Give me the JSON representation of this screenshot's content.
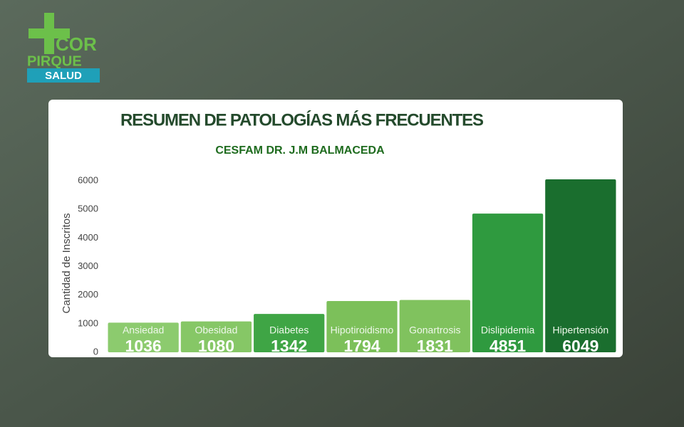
{
  "logo": {
    "line1": "COR",
    "line2": "PIRQUE",
    "line3": "SALUD"
  },
  "chart_data": {
    "type": "bar",
    "title": "RESUMEN DE PATOLOGÍAS MÁS FRECUENTES",
    "subtitle": "CESFAM DR. J.M BALMACEDA",
    "y_label": "Cantidad de Inscritos",
    "categories": [
      "Ansiedad",
      "Obesidad",
      "Diabetes",
      "Hipotiroidismo",
      "Gonartrosis",
      "Dislipidemia",
      "Hipertensión"
    ],
    "values": [
      1036,
      1080,
      1342,
      1794,
      1831,
      4851,
      6049
    ],
    "colors": [
      "#8ccb6e",
      "#86c766",
      "#3fa545",
      "#7cc05a",
      "#80c25e",
      "#2f9a3f",
      "#1a6e2e"
    ],
    "ylim": [
      0,
      6000
    ],
    "yticks": [
      0,
      1000,
      2000,
      3000,
      4000,
      5000,
      6000
    ],
    "grid": false
  }
}
